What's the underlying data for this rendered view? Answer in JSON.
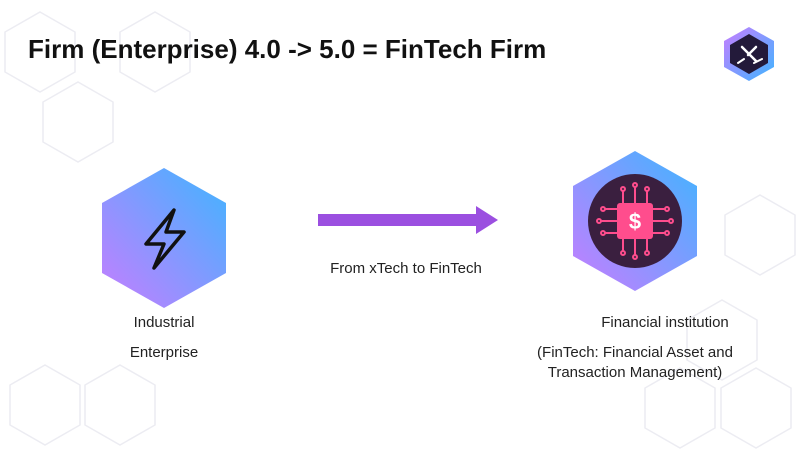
{
  "slide": {
    "title": "Firm (Enterprise) 4.0 -> 5.0 = FinTech Firm"
  },
  "left_node": {
    "icon": "lightning-icon",
    "line1": "Industrial",
    "line2": "Enterprise"
  },
  "arrow": {
    "label": "From xTech to FinTech"
  },
  "right_node": {
    "icon": "dollar-chip-icon",
    "line1": "Financial institution",
    "line2": "(FinTech: Financial Asset and",
    "line3": "Transaction Management)"
  },
  "colors": {
    "hex_gradient_start": "#c77dff",
    "hex_gradient_end": "#3fb5ff",
    "arrow": "#9b4fe0",
    "chip": "#ff4d8d",
    "chip_bg": "#3a1f3f"
  }
}
